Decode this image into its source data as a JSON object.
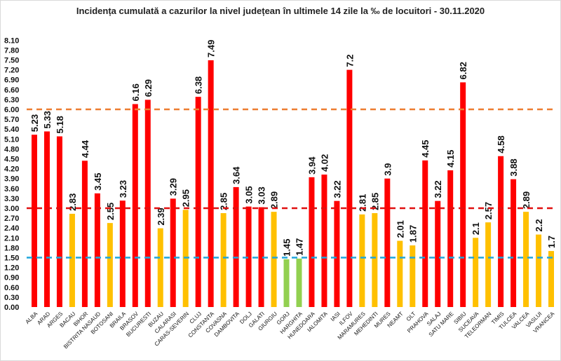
{
  "chart_data": {
    "type": "bar",
    "title": "Incidența cumulată a cazurilor la nivel județean în ultimele 14 zile la ‰ de locuitori - 30.11.2020",
    "categories": [
      "ALBA",
      "ARAD",
      "ARGES",
      "BACAU",
      "BIHOR",
      "BISTRITA NASAUD",
      "BOTOSANI",
      "BRAILA",
      "BRASOV",
      "BUCURESTI",
      "BUZAU",
      "CALARASI",
      "CARAS-SEVERIN",
      "CLUJ",
      "CONSTANTA",
      "COVASNA",
      "DAMBOVITA",
      "DOLJ",
      "GALATI",
      "GIURGIU",
      "GORJ",
      "HARGHITA",
      "HUNEDOARA",
      "IALOMITA",
      "IASI",
      "ILFOV",
      "MARAMURES",
      "MEHEDINTI",
      "MURES",
      "NEAMT",
      "OLT",
      "PRAHOVA",
      "SALAJ",
      "SATU MARE",
      "SIBIU",
      "SUCEAVA",
      "TELEORMAN",
      "TIMIS",
      "TULCEA",
      "VALCEA",
      "VASLUI",
      "VRANCEA"
    ],
    "values": [
      5.23,
      5.33,
      5.18,
      2.83,
      4.44,
      3.45,
      2.55,
      3.23,
      6.16,
      6.29,
      2.39,
      3.29,
      2.95,
      6.38,
      7.49,
      2.85,
      3.64,
      3.05,
      3.03,
      2.89,
      1.45,
      1.47,
      3.94,
      4.02,
      3.22,
      7.2,
      2.81,
      2.85,
      3.9,
      2.01,
      1.87,
      4.45,
      3.22,
      4.15,
      6.82,
      2.1,
      2.57,
      4.58,
      3.88,
      2.89,
      2.2,
      1.7
    ],
    "ylim": [
      0,
      8.1
    ],
    "ytick_step": 0.3,
    "grid": false,
    "thresholds": [
      {
        "value": 6.0,
        "color": "#ED7D31"
      },
      {
        "value": 3.0,
        "color": "#E01010"
      },
      {
        "value": 1.5,
        "color": "#1EA5DC"
      }
    ],
    "colors": {
      "high": "#FF0000",
      "medium": "#FFC000",
      "low": "#92D050"
    }
  }
}
